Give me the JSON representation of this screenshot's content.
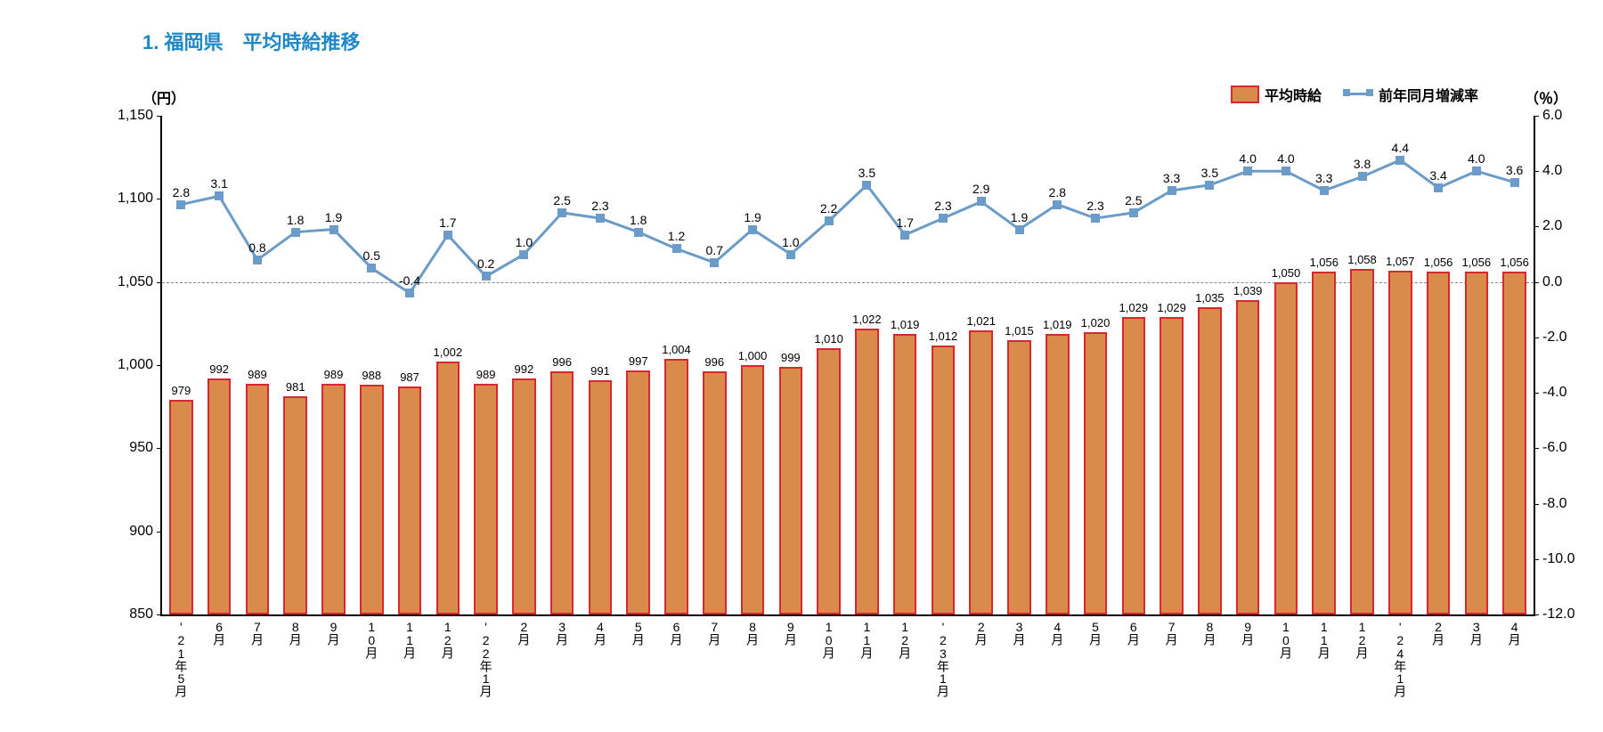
{
  "title": "1. 福岡県　平均時給推移",
  "chart": {
    "type": "combo-bar-line",
    "y_left": {
      "title": "（円）",
      "min": 850,
      "max": 1150,
      "ticks": [
        850,
        900,
        950,
        1000,
        1050,
        1100,
        1150
      ],
      "fontsize": 16
    },
    "y_right": {
      "title": "（％）",
      "min": -12.0,
      "max": 6.0,
      "ticks": [
        -12.0,
        -10.0,
        -8.0,
        -6.0,
        -4.0,
        -2.0,
        0.0,
        2.0,
        4.0,
        6.0
      ],
      "fontsize": 16
    },
    "legend": {
      "bar_label": "平均時給",
      "line_label": "前年同月増減率"
    },
    "colors": {
      "bar_fill": "#d88b4a",
      "bar_border": "#d9272e",
      "line": "#6b9bc9",
      "marker": "#6b9bc9",
      "title_color": "#1f88c9",
      "background": "#ffffff",
      "grid_dash": "#888888",
      "axis": "#000000"
    },
    "bar_width_ratio": 0.62,
    "categories": [
      "'21年5月",
      "6月",
      "7月",
      "8月",
      "9月",
      "10月",
      "11月",
      "12月",
      "'22年1月",
      "2月",
      "3月",
      "4月",
      "5月",
      "6月",
      "7月",
      "8月",
      "9月",
      "10月",
      "11月",
      "12月",
      "'23年1月",
      "2月",
      "3月",
      "4月",
      "5月",
      "6月",
      "7月",
      "8月",
      "9月",
      "10月",
      "11月",
      "12月",
      "'24年1月",
      "2月",
      "3月",
      "4月"
    ],
    "bar_values": [
      979,
      992,
      989,
      981,
      989,
      988,
      987,
      1002,
      989,
      992,
      996,
      991,
      997,
      1004,
      996,
      1000,
      999,
      1010,
      1022,
      1019,
      1012,
      1021,
      1015,
      1019,
      1020,
      1029,
      1029,
      1035,
      1039,
      1050,
      1056,
      1058,
      1057,
      1056,
      1056,
      1056
    ],
    "line_values": [
      2.8,
      3.1,
      0.8,
      1.8,
      1.9,
      0.5,
      -0.4,
      1.7,
      0.2,
      1.0,
      2.5,
      2.3,
      1.8,
      1.2,
      0.7,
      1.9,
      1.0,
      2.2,
      3.5,
      1.7,
      2.3,
      2.9,
      1.9,
      2.8,
      2.3,
      2.5,
      3.3,
      3.5,
      4.0,
      4.0,
      3.3,
      3.8,
      4.4,
      3.4,
      4.0,
      3.6
    ],
    "zero_line_on_right_axis": 0.0
  }
}
